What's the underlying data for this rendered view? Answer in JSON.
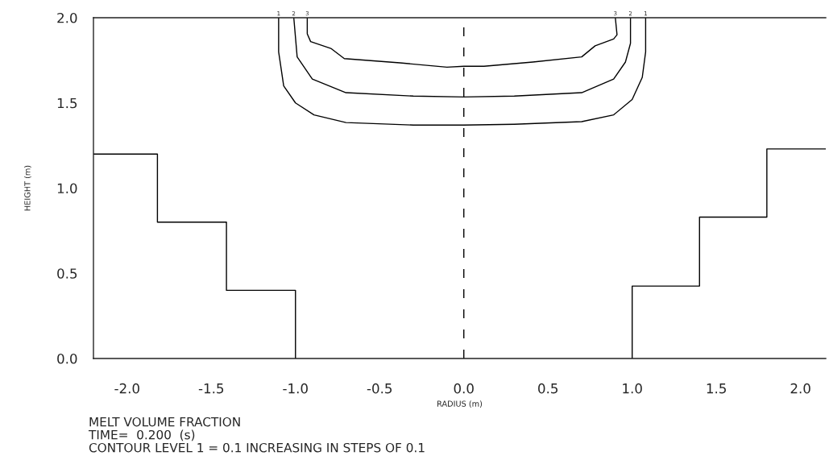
{
  "chart_data": {
    "type": "line",
    "xlabel": "RADIUS (m)",
    "ylabel": "HEIGHT (m)",
    "xlim": [
      -2.2,
      2.15
    ],
    "ylim": [
      0,
      2.0
    ],
    "xticks": [
      {
        "value": -2.0,
        "label": "-2.0"
      },
      {
        "value": -1.5,
        "label": "-1.5"
      },
      {
        "value": -1.0,
        "label": "-1.0"
      },
      {
        "value": -0.5,
        "label": "-0.5"
      },
      {
        "value": 0.0,
        "label": "0.0"
      },
      {
        "value": 0.5,
        "label": "0.5"
      },
      {
        "value": 1.0,
        "label": "1.0"
      },
      {
        "value": 1.5,
        "label": "1.5"
      },
      {
        "value": 2.0,
        "label": "2.0"
      }
    ],
    "yticks": [
      {
        "value": 0.0,
        "label": "0.0"
      },
      {
        "value": 0.5,
        "label": "0.5"
      },
      {
        "value": 1.0,
        "label": "1.0"
      },
      {
        "value": 1.5,
        "label": "1.5"
      },
      {
        "value": 2.0,
        "label": "2.0"
      }
    ],
    "series": [
      {
        "color": "#000000",
        "x": [
          -1.1,
          -1.1,
          -1.07,
          -1.0,
          -0.89,
          -0.7,
          -0.3,
          0.0,
          0.3,
          0.7,
          0.89,
          1.0,
          1.06,
          1.08,
          1.08
        ],
        "values": [
          2.0,
          1.8,
          1.6,
          1.5,
          1.43,
          1.385,
          1.37,
          1.37,
          1.375,
          1.39,
          1.43,
          1.52,
          1.65,
          1.8,
          2.0
        ]
      },
      {
        "color": "#000000",
        "x": [
          -1.01,
          -0.99,
          -0.9,
          -0.7,
          -0.3,
          0.0,
          0.3,
          0.7,
          0.89,
          0.96,
          0.99,
          0.99
        ],
        "values": [
          2.0,
          1.77,
          1.64,
          1.56,
          1.54,
          1.535,
          1.54,
          1.56,
          1.64,
          1.74,
          1.85,
          2.0
        ]
      },
      {
        "color": "#000000",
        "x": [
          -0.93,
          -0.93,
          -0.91,
          -0.79,
          -0.71,
          -0.38,
          -0.1,
          0.0,
          0.12,
          0.41,
          0.7,
          0.78,
          0.89,
          0.91,
          0.9
        ],
        "values": [
          2.0,
          1.905,
          1.86,
          1.82,
          1.76,
          1.735,
          1.71,
          1.715,
          1.715,
          1.74,
          1.77,
          1.835,
          1.875,
          1.9,
          2.0
        ]
      },
      {
        "color": "#000000",
        "x": [
          -2.2,
          -1.82,
          -1.82,
          -1.41,
          -1.41,
          -1.0,
          -1.0
        ],
        "values": [
          1.2,
          1.2,
          0.8,
          0.8,
          0.4,
          0.4,
          0.0
        ]
      },
      {
        "color": "#000000",
        "x": [
          1.0,
          1.0,
          1.4,
          1.4,
          1.8,
          1.8,
          2.15
        ],
        "values": [
          0.0,
          0.425,
          0.425,
          0.83,
          0.83,
          1.23,
          1.23
        ]
      }
    ],
    "ref_lines": [
      {
        "axis": "x",
        "value": 0.0,
        "line_style": "dashed",
        "color": "#000000"
      }
    ],
    "grid": false,
    "legend": false,
    "annotations": [
      {
        "text": "1",
        "x": -1.1,
        "y": 2.0
      },
      {
        "text": "2",
        "x": -1.01,
        "y": 2.0
      },
      {
        "text": "3",
        "x": -0.93,
        "y": 2.0
      },
      {
        "text": "3",
        "x": 0.9,
        "y": 2.0
      },
      {
        "text": "2",
        "x": 0.99,
        "y": 2.0
      },
      {
        "text": "1",
        "x": 1.08,
        "y": 2.0
      },
      "MELT VOLUME FRACTION",
      "TIME=  0.200  (s)",
      "CONTOUR LEVEL 1 = 0.1 INCREASING IN STEPS OF 0.1"
    ]
  }
}
